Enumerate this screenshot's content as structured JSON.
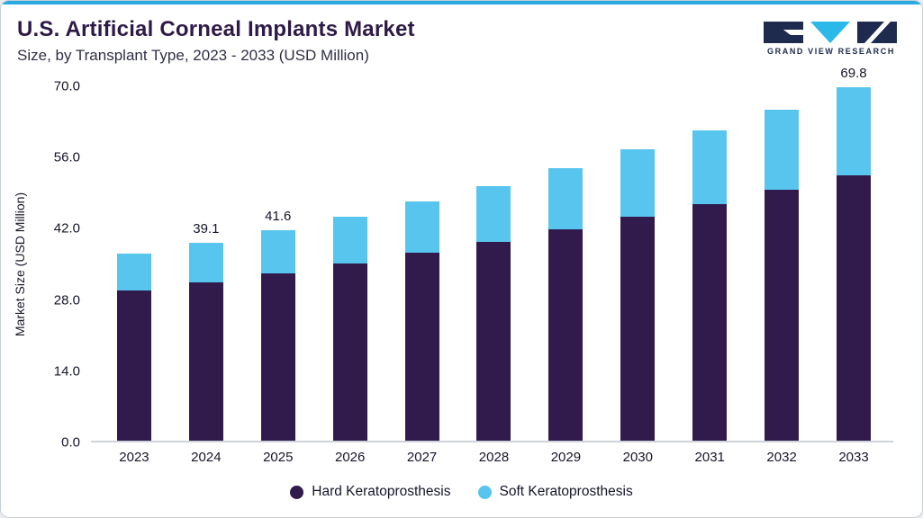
{
  "header": {
    "title": "U.S. Artificial Corneal Implants Market",
    "subtitle": "Size, by Transplant Type, 2023 - 2033 (USD Million)",
    "logo_text": "GRAND VIEW RESEARCH"
  },
  "colors": {
    "accent_line": "#29abe2",
    "title": "#2e1a47",
    "logo_navy": "#1e2b4f",
    "logo_cyan": "#2bb9ea"
  },
  "chart_data": {
    "type": "bar",
    "stacked": true,
    "title": "U.S. Artificial Corneal Implants Market Size, by Transplant Type, 2023 - 2033 (USD Million)",
    "xlabel": "",
    "ylabel": "Market Size (USD Million)",
    "ylim": [
      0,
      70
    ],
    "yticks": [
      0.0,
      14.0,
      28.0,
      42.0,
      56.0,
      70.0
    ],
    "grid": false,
    "legend_position": "bottom",
    "categories": [
      "2023",
      "2024",
      "2025",
      "2026",
      "2027",
      "2028",
      "2029",
      "2030",
      "2031",
      "2032",
      "2033"
    ],
    "series": [
      {
        "name": "Hard Keratoprosthesis",
        "color": "#311b4d",
        "values": [
          29.7,
          31.3,
          33.1,
          35.0,
          37.1,
          39.3,
          41.7,
          44.2,
          46.8,
          49.6,
          52.5
        ]
      },
      {
        "name": "Soft Keratoprosthesis",
        "color": "#58c5ee",
        "values": [
          7.3,
          7.8,
          8.5,
          9.2,
          10.1,
          11.0,
          12.1,
          13.3,
          14.5,
          15.8,
          17.3
        ]
      }
    ],
    "totals": [
      37.0,
      39.1,
      41.6,
      44.2,
      47.2,
      50.3,
      53.8,
      57.5,
      61.3,
      65.4,
      69.8
    ],
    "bar_labels": {
      "2024": "39.1",
      "2025": "41.6",
      "2033": "69.8"
    }
  }
}
